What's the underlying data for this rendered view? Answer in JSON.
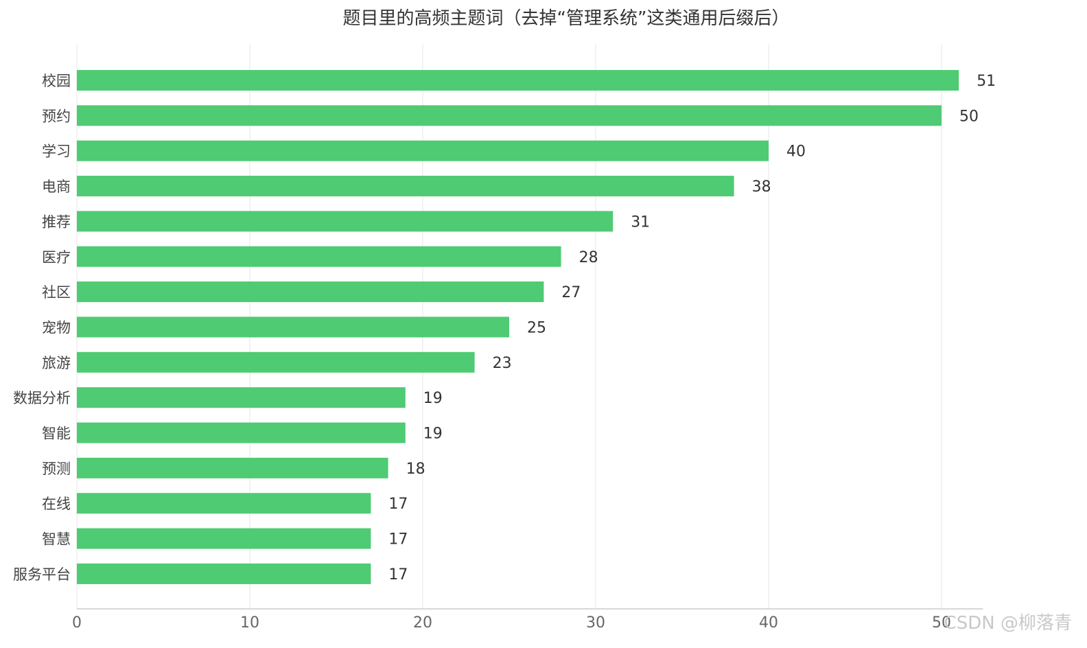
{
  "chart_data": {
    "type": "bar",
    "orientation": "horizontal",
    "title": "题目里的高频主题词（去掉“管理系统”这类通用后缀后）",
    "categories": [
      "校园",
      "预约",
      "学习",
      "电商",
      "推荐",
      "医疗",
      "社区",
      "宠物",
      "旅游",
      "数据分析",
      "智能",
      "预测",
      "在线",
      "智慧",
      "服务平台"
    ],
    "values": [
      51,
      50,
      40,
      38,
      31,
      28,
      27,
      25,
      23,
      19,
      19,
      18,
      17,
      17,
      17
    ],
    "xlim": [
      0,
      52
    ],
    "xticks": [
      0,
      10,
      20,
      30,
      40,
      50
    ],
    "grid": true,
    "bar_color": "#4ecb73",
    "data_labels": true
  },
  "watermark": "CSDN @柳落青"
}
